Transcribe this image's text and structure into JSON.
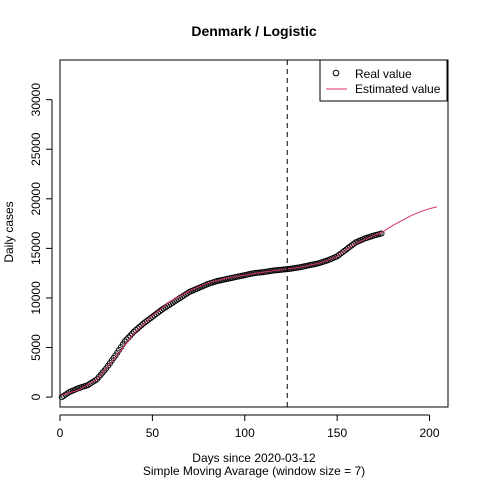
{
  "chart_data": {
    "type": "scatter",
    "title": "Denmark / Logistic",
    "xlabel": "Days since 2020-03-12",
    "xlabel2": "Simple Moving Avarage (window size = 7)",
    "ylabel": "Daily cases",
    "xlim": [
      0,
      210
    ],
    "ylim": [
      -1000,
      34000
    ],
    "xticks": [
      0,
      50,
      100,
      150,
      200
    ],
    "yticks": [
      0,
      5000,
      10000,
      15000,
      20000,
      25000,
      30000
    ],
    "vline_x": 123,
    "legend_position": "top-right",
    "colors": {
      "real": "#000000",
      "estimated": "#d62f6a"
    },
    "series": [
      {
        "name": "Real value",
        "marker": "open-circle",
        "x_start": 1,
        "x_end": 174,
        "knots": [
          [
            1,
            0
          ],
          [
            5,
            500
          ],
          [
            10,
            900
          ],
          [
            15,
            1200
          ],
          [
            20,
            1800
          ],
          [
            25,
            2900
          ],
          [
            30,
            4200
          ],
          [
            35,
            5600
          ],
          [
            40,
            6600
          ],
          [
            45,
            7400
          ],
          [
            50,
            8100
          ],
          [
            55,
            8800
          ],
          [
            60,
            9400
          ],
          [
            65,
            10000
          ],
          [
            70,
            10600
          ],
          [
            75,
            11000
          ],
          [
            80,
            11400
          ],
          [
            85,
            11700
          ],
          [
            90,
            11900
          ],
          [
            95,
            12100
          ],
          [
            100,
            12300
          ],
          [
            105,
            12500
          ],
          [
            110,
            12600
          ],
          [
            115,
            12750
          ],
          [
            120,
            12850
          ],
          [
            125,
            12950
          ],
          [
            130,
            13100
          ],
          [
            135,
            13300
          ],
          [
            140,
            13500
          ],
          [
            145,
            13800
          ],
          [
            150,
            14200
          ],
          [
            155,
            14900
          ],
          [
            160,
            15600
          ],
          [
            165,
            16000
          ],
          [
            170,
            16300
          ],
          [
            174,
            16500
          ]
        ]
      },
      {
        "name": "Estimated value",
        "marker": "line",
        "knots": [
          [
            1,
            200
          ],
          [
            10,
            700
          ],
          [
            20,
            1800
          ],
          [
            30,
            4000
          ],
          [
            40,
            6400
          ],
          [
            50,
            8200
          ],
          [
            60,
            9700
          ],
          [
            70,
            10700
          ],
          [
            80,
            11500
          ],
          [
            90,
            12000
          ],
          [
            100,
            12300
          ],
          [
            110,
            12600
          ],
          [
            120,
            12850
          ],
          [
            130,
            13100
          ],
          [
            140,
            13500
          ],
          [
            145,
            13800
          ],
          [
            150,
            14200
          ],
          [
            155,
            14900
          ],
          [
            160,
            15500
          ],
          [
            165,
            15900
          ],
          [
            170,
            16300
          ],
          [
            175,
            16700
          ],
          [
            180,
            17300
          ],
          [
            185,
            17800
          ],
          [
            190,
            18300
          ],
          [
            195,
            18700
          ],
          [
            200,
            19000
          ],
          [
            204,
            19200
          ]
        ]
      }
    ]
  }
}
